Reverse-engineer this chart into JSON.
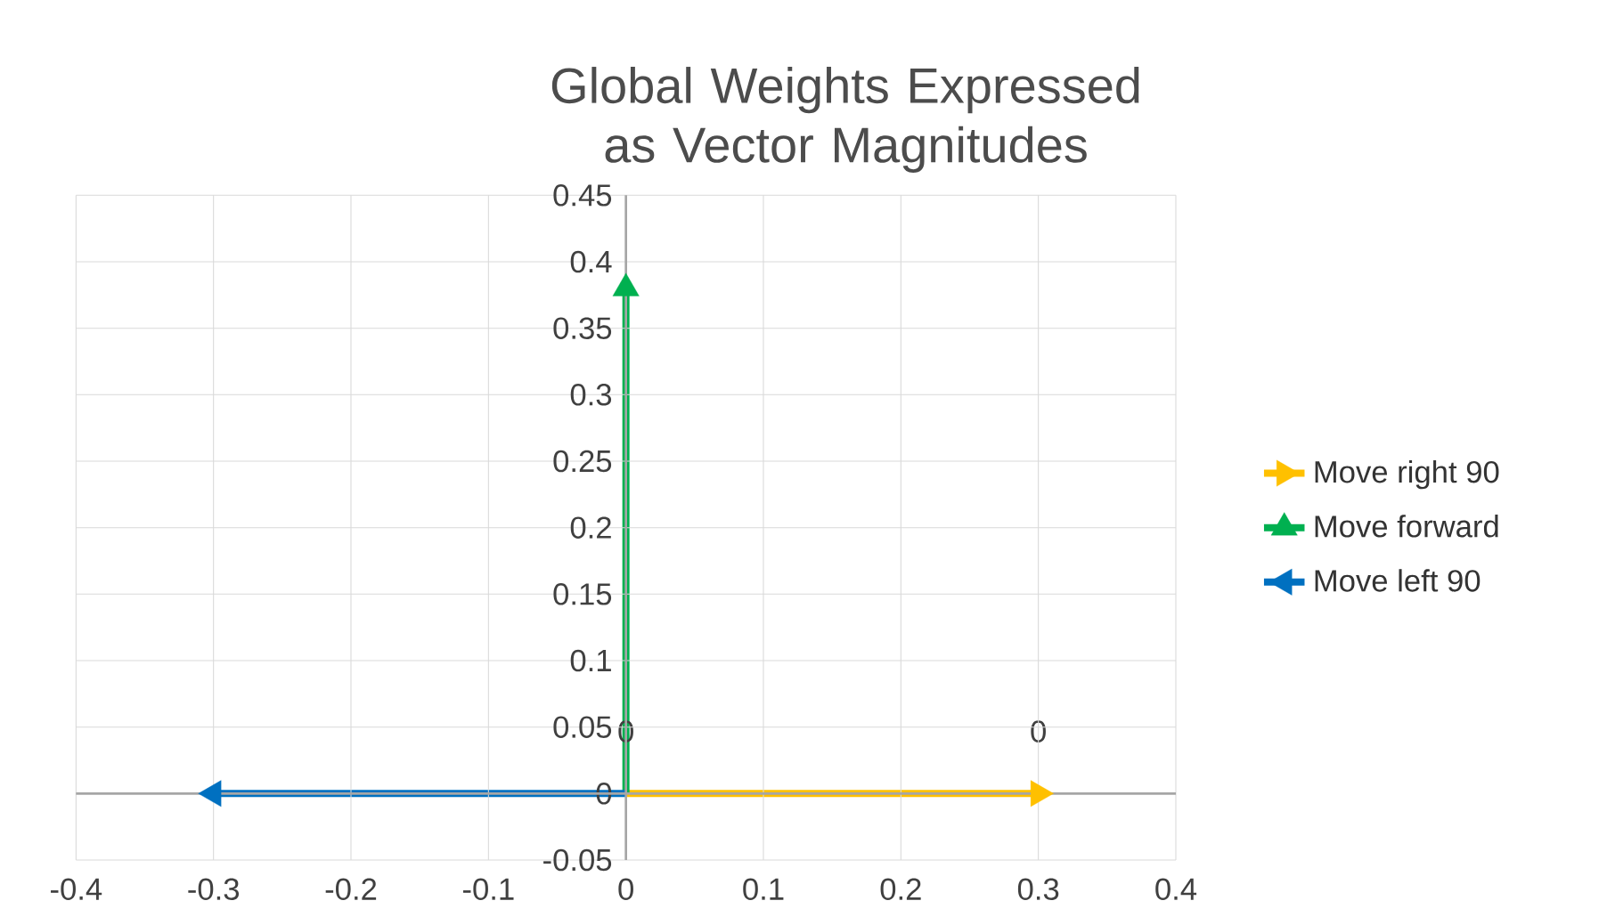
{
  "chart_data": {
    "type": "line",
    "title": "Global Weights Expressed as Vector Magnitudes",
    "xlim": [
      -0.4,
      0.4
    ],
    "xticks": [
      -0.4,
      -0.3,
      -0.2,
      -0.1,
      0,
      0.1,
      0.2,
      0.3,
      0.4
    ],
    "ylim": [
      -0.05,
      0.45
    ],
    "yticks": [
      -0.05,
      0,
      0.05,
      0.1,
      0.15,
      0.2,
      0.25,
      0.3,
      0.35,
      0.4,
      0.45
    ],
    "grid": true,
    "legend": "right",
    "line_style": "solid",
    "series": [
      {
        "name": "Move right 90",
        "color": "#ffc000",
        "x": [
          0,
          0.3
        ],
        "values": [
          0,
          0
        ],
        "value_labels": [
          "0",
          "0"
        ]
      },
      {
        "name": "Move forward",
        "color": "#00b050",
        "x": [
          0,
          0
        ],
        "values": [
          0,
          0.38
        ]
      },
      {
        "name": "Move left 90",
        "color": "#0070c0",
        "x": [
          0,
          -0.3
        ],
        "values": [
          0,
          0
        ]
      }
    ]
  }
}
